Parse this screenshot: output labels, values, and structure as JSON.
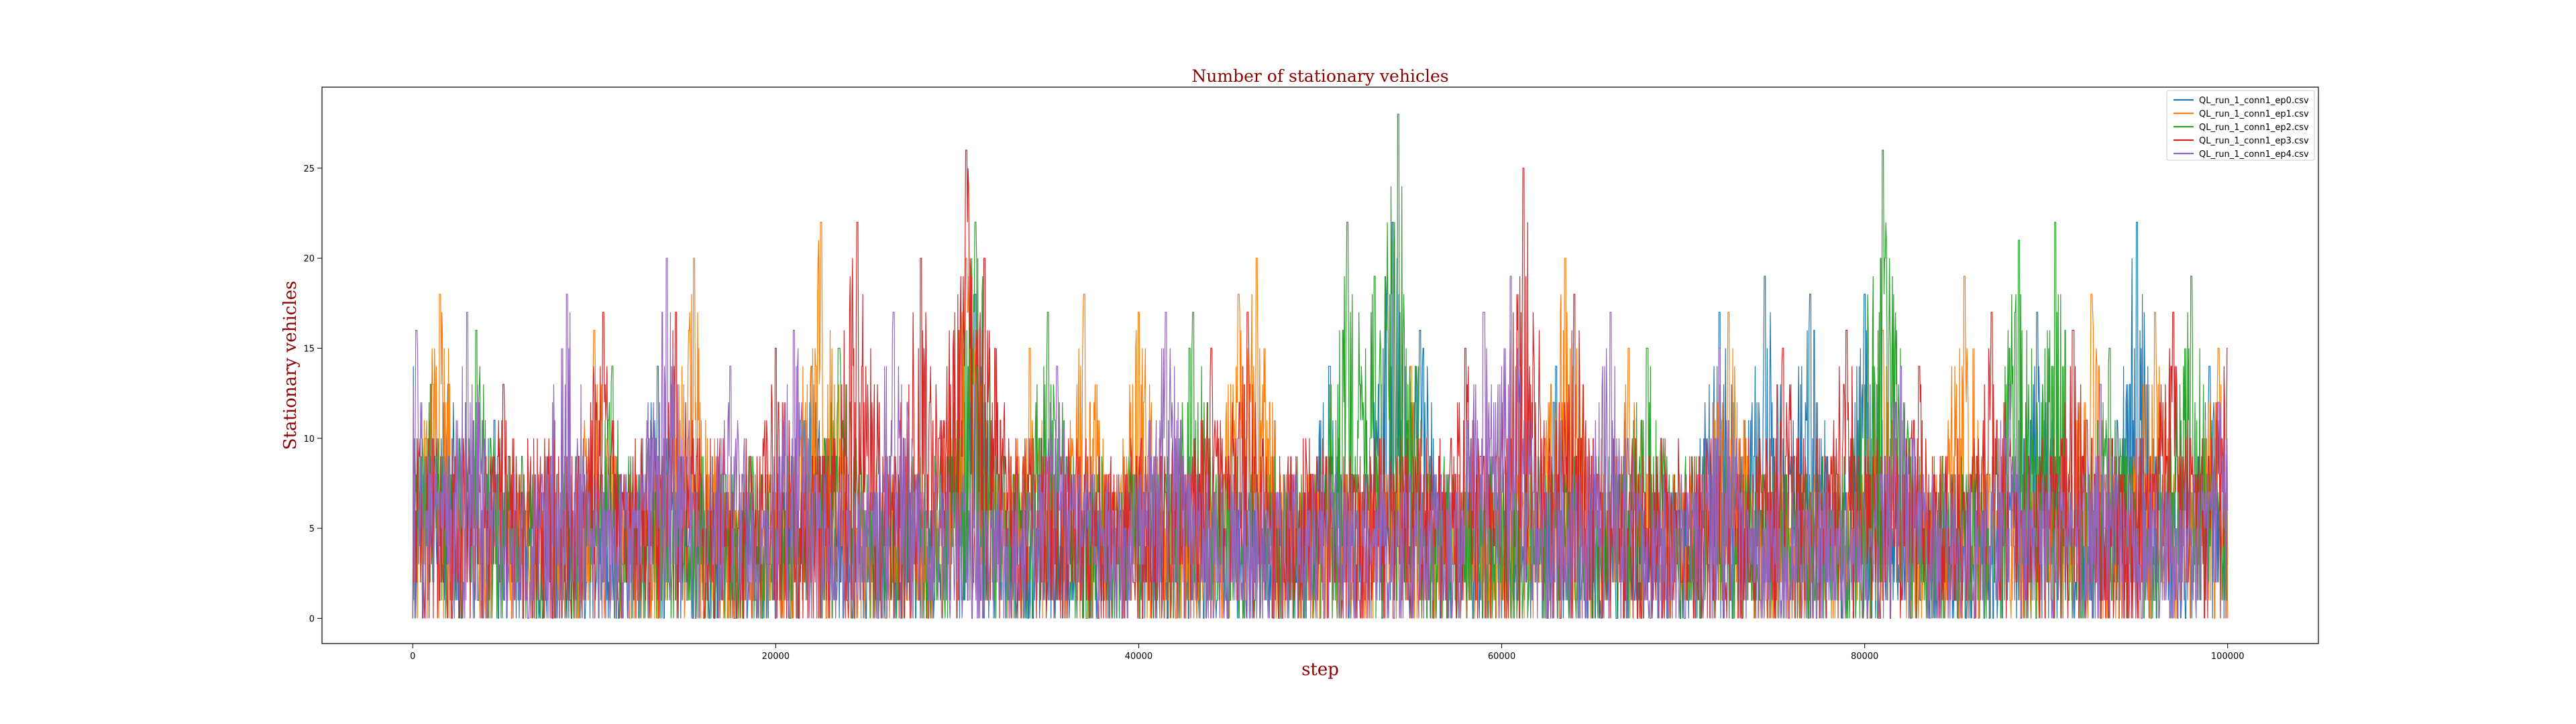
{
  "chart_data": {
    "type": "line",
    "title": "Number of stationary vehicles",
    "xlabel": "step",
    "ylabel": "Stationary vehicles",
    "xlim": [
      -5000,
      105000
    ],
    "ylim": [
      -1.4,
      29.5
    ],
    "xticks": [
      0,
      20000,
      40000,
      60000,
      80000,
      100000
    ],
    "yticks": [
      0,
      5,
      10,
      15,
      20,
      25
    ],
    "legend_position": "top-right",
    "grid": false,
    "series": [
      {
        "name": "QL_run_1_conn1_ep0.csv",
        "color": "#1f77b4",
        "baseline_max": 7,
        "bursts": [
          [
            0,
            14
          ],
          [
            2000,
            13
          ],
          [
            4500,
            11
          ],
          [
            13500,
            14
          ],
          [
            22000,
            14
          ],
          [
            31000,
            18
          ],
          [
            50500,
            14
          ],
          [
            54000,
            22
          ],
          [
            55500,
            16
          ],
          [
            63000,
            14
          ],
          [
            72000,
            17
          ],
          [
            74500,
            19
          ],
          [
            77000,
            18
          ],
          [
            80000,
            18
          ],
          [
            89500,
            17
          ],
          [
            95000,
            22
          ],
          [
            99000,
            14
          ]
        ]
      },
      {
        "name": "QL_run_1_conn1_ep1.csv",
        "color": "#ff7f0e",
        "baseline_max": 8,
        "bursts": [
          [
            1500,
            18
          ],
          [
            10000,
            16
          ],
          [
            15500,
            20
          ],
          [
            22500,
            22
          ],
          [
            30500,
            20
          ],
          [
            34000,
            15
          ],
          [
            37000,
            18
          ],
          [
            40000,
            17
          ],
          [
            45500,
            18
          ],
          [
            46500,
            20
          ],
          [
            55000,
            14
          ],
          [
            63500,
            20
          ],
          [
            67000,
            15
          ],
          [
            72500,
            17
          ],
          [
            81000,
            16
          ],
          [
            85500,
            19
          ],
          [
            92500,
            18
          ],
          [
            96000,
            17
          ],
          [
            99500,
            15
          ]
        ]
      },
      {
        "name": "QL_run_1_conn1_ep2.csv",
        "color": "#2ca02c",
        "baseline_max": 9,
        "bursts": [
          [
            1000,
            13
          ],
          [
            3500,
            16
          ],
          [
            11000,
            14
          ],
          [
            23500,
            15
          ],
          [
            31000,
            22
          ],
          [
            35000,
            17
          ],
          [
            43000,
            17
          ],
          [
            51500,
            22
          ],
          [
            53000,
            19
          ],
          [
            54300,
            28
          ],
          [
            68000,
            15
          ],
          [
            81000,
            26
          ],
          [
            88500,
            21
          ],
          [
            90500,
            22
          ],
          [
            93500,
            15
          ],
          [
            98000,
            19
          ]
        ]
      },
      {
        "name": "QL_run_1_conn1_ep3.csv",
        "color": "#d62728",
        "baseline_max": 10,
        "bursts": [
          [
            5000,
            13
          ],
          [
            10500,
            17
          ],
          [
            14500,
            17
          ],
          [
            20000,
            15
          ],
          [
            24500,
            22
          ],
          [
            28000,
            20
          ],
          [
            30500,
            26
          ],
          [
            31500,
            20
          ],
          [
            44000,
            15
          ],
          [
            46000,
            17
          ],
          [
            58000,
            15
          ],
          [
            61200,
            25
          ],
          [
            64000,
            18
          ],
          [
            75500,
            15
          ],
          [
            79000,
            16
          ],
          [
            83000,
            14
          ],
          [
            87000,
            17
          ],
          [
            91500,
            16
          ],
          [
            97000,
            17
          ],
          [
            100000,
            15
          ]
        ]
      },
      {
        "name": "QL_run_1_conn1_ep4.csv",
        "color": "#9467bd",
        "baseline_max": 8,
        "bursts": [
          [
            200,
            16
          ],
          [
            3000,
            17
          ],
          [
            8500,
            18
          ],
          [
            14000,
            20
          ],
          [
            17500,
            14
          ],
          [
            21000,
            16
          ],
          [
            26500,
            17
          ],
          [
            35500,
            14
          ],
          [
            41500,
            17
          ],
          [
            59000,
            17
          ],
          [
            60500,
            19
          ],
          [
            66000,
            17
          ],
          [
            72000,
            15
          ],
          [
            82000,
            14
          ],
          [
            88000,
            13
          ],
          [
            93000,
            13
          ],
          [
            99500,
            12
          ]
        ]
      }
    ]
  }
}
